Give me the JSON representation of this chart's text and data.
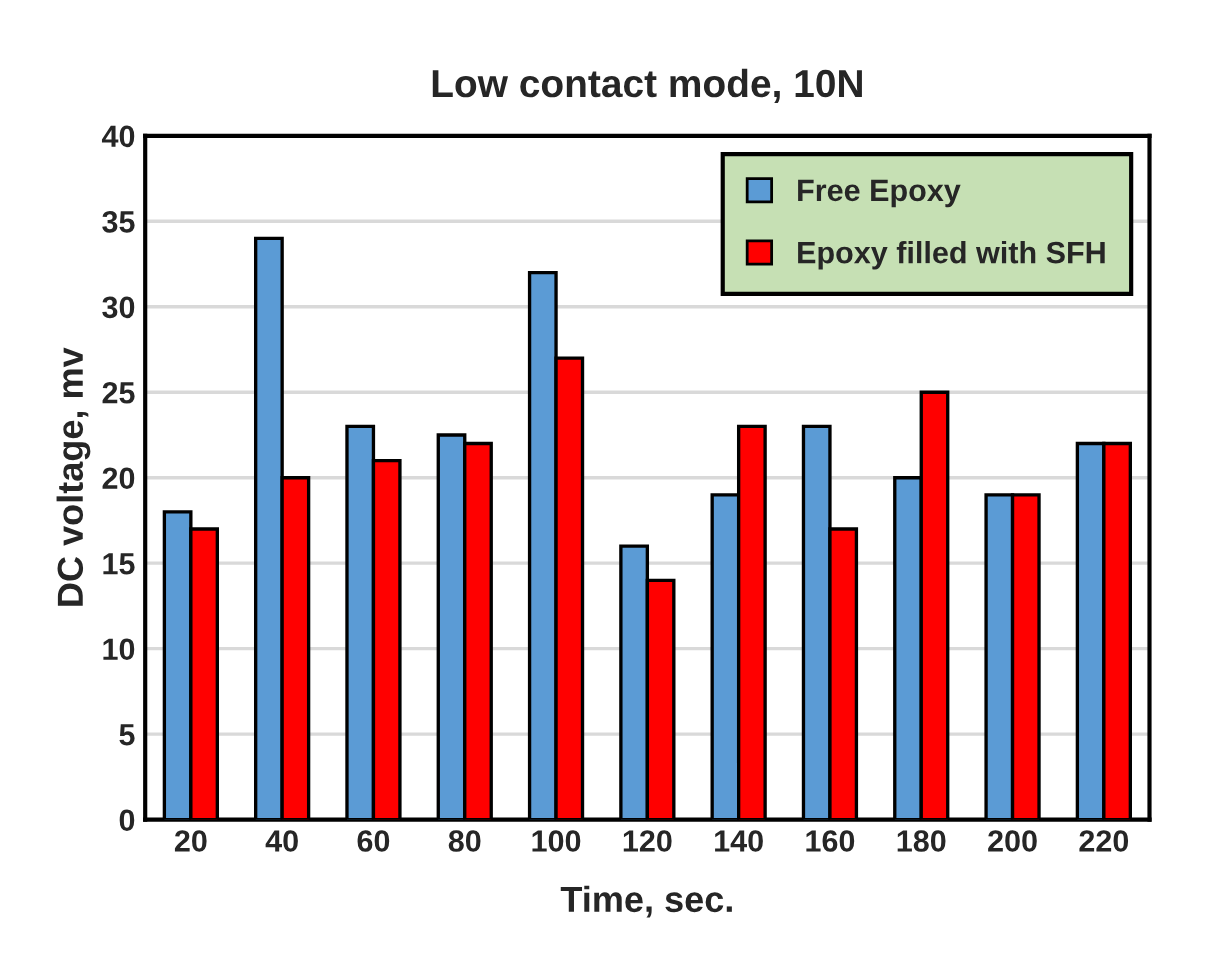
{
  "chart_data": {
    "type": "bar",
    "title": "Low contact mode, 10N",
    "xlabel": "Time, sec.",
    "ylabel": "DC voltage, mv",
    "categories": [
      "20",
      "40",
      "60",
      "80",
      "100",
      "120",
      "140",
      "160",
      "180",
      "200",
      "220"
    ],
    "series": [
      {
        "name": "Free Epoxy",
        "color": "#5b9bd5",
        "values": [
          18,
          34,
          23,
          22.5,
          32,
          16,
          19,
          23,
          20,
          19,
          22
        ]
      },
      {
        "name": "Epoxy filled with SFH",
        "color": "#ff0000",
        "values": [
          17,
          20,
          21,
          22,
          27,
          14,
          23,
          17,
          25,
          19,
          22
        ]
      }
    ],
    "ylim": [
      0,
      40
    ],
    "yticks": [
      0,
      5,
      10,
      15,
      20,
      25,
      30,
      35,
      40
    ],
    "grid": "y",
    "legend": "top right"
  }
}
